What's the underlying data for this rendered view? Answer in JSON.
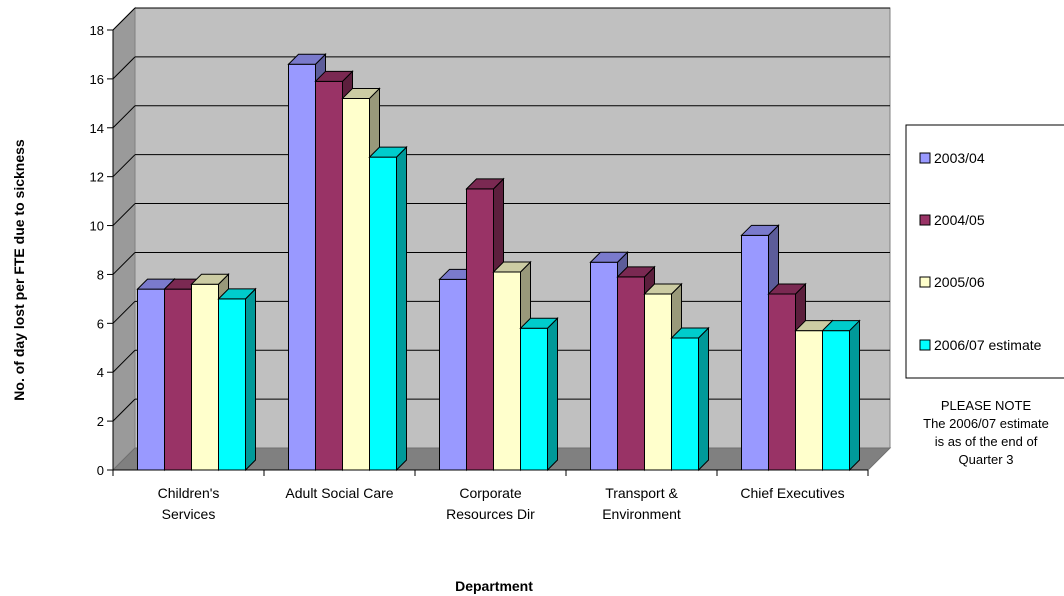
{
  "chart_data": {
    "type": "bar",
    "title": "",
    "xlabel": "Department",
    "ylabel": "No. of day lost per FTE due to sickness",
    "ylim": [
      0,
      18
    ],
    "yticks": [
      "0",
      "2",
      "4",
      "6",
      "8",
      "10",
      "12",
      "14",
      "16",
      "18"
    ],
    "grid": true,
    "three_d": true,
    "legend_position": "right",
    "categories": [
      [
        "Children's",
        "Services"
      ],
      [
        "Adult Social Care"
      ],
      [
        "Corporate",
        "Resources Dir"
      ],
      [
        "Transport &",
        "Environment"
      ],
      [
        "Chief Executives"
      ]
    ],
    "series": [
      {
        "name": "2003/04",
        "color": "#9999ff",
        "values": [
          7.4,
          16.6,
          7.8,
          8.5,
          9.6
        ]
      },
      {
        "name": "2004/05",
        "color": "#993366",
        "values": [
          7.4,
          15.9,
          11.5,
          7.9,
          7.2
        ]
      },
      {
        "name": "2005/06",
        "color": "#ffffcc",
        "values": [
          7.6,
          15.2,
          8.1,
          7.2,
          5.7
        ]
      },
      {
        "name": "2006/07 estimate",
        "color": "#00ffff",
        "values": [
          7.0,
          12.8,
          5.8,
          5.4,
          5.7
        ]
      }
    ],
    "annotation": [
      "PLEASE NOTE",
      "The 2006/07 estimate",
      "is as of the end of",
      "Quarter 3"
    ]
  }
}
